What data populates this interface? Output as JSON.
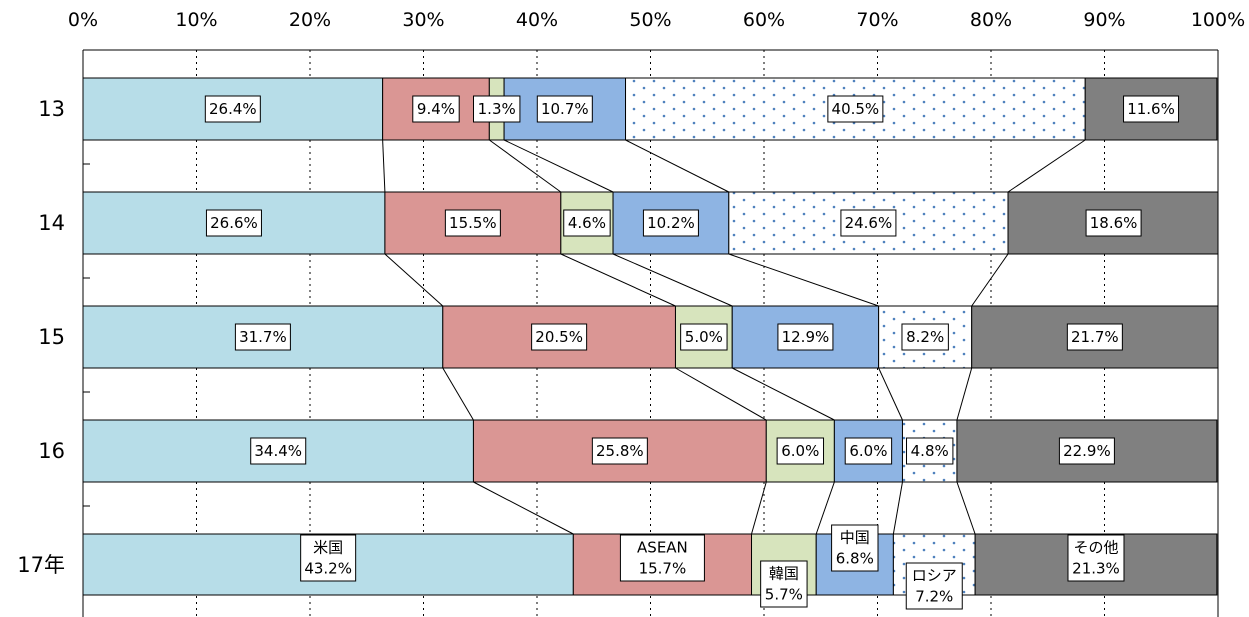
{
  "chart_data": {
    "type": "bar",
    "orientation": "horizontal",
    "stacked": "100%",
    "categories": [
      "13",
      "14",
      "15",
      "16",
      "17年"
    ],
    "x_ticks": [
      "0%",
      "10%",
      "20%",
      "30%",
      "40%",
      "50%",
      "60%",
      "70%",
      "80%",
      "90%",
      "100%"
    ],
    "xlim": [
      0,
      100
    ],
    "x_axis_position": "top",
    "grid": "vertical dotted",
    "legend": "labels inside last bar",
    "series": [
      {
        "name": "米国",
        "color": "#b7dde8",
        "values": [
          26.4,
          26.6,
          31.7,
          34.4,
          43.2
        ]
      },
      {
        "name": "ASEAN",
        "color": "#da9694",
        "values": [
          9.4,
          15.5,
          20.5,
          25.8,
          15.7
        ]
      },
      {
        "name": "韓国",
        "color": "#d7e4bd",
        "values": [
          1.3,
          4.6,
          5.0,
          6.0,
          5.7
        ]
      },
      {
        "name": "中国",
        "color": "#8eb4e3",
        "values": [
          10.7,
          10.2,
          12.9,
          6.0,
          6.8
        ]
      },
      {
        "name": "ロシア",
        "color": "#ffffff",
        "pattern": "dots",
        "values": [
          40.5,
          24.6,
          8.2,
          4.8,
          7.2
        ]
      },
      {
        "name": "その他",
        "color": "#808080",
        "values": [
          11.6,
          18.6,
          21.7,
          22.9,
          21.3
        ]
      }
    ],
    "value_labels": [
      [
        "26.4%",
        "9.4%",
        "1.3%",
        "10.7%",
        "40.5%",
        "11.6%"
      ],
      [
        "26.6%",
        "15.5%",
        "4.6%",
        "10.2%",
        "24.6%",
        "18.6%"
      ],
      [
        "31.7%",
        "20.5%",
        "5.0%",
        "12.9%",
        "8.2%",
        "21.7%"
      ],
      [
        "34.4%",
        "25.8%",
        "6.0%",
        "6.0%",
        "4.8%",
        "22.9%"
      ],
      [
        "43.2%",
        "15.7%",
        "5.7%",
        "6.8%",
        "7.2%",
        "21.3%"
      ]
    ]
  }
}
